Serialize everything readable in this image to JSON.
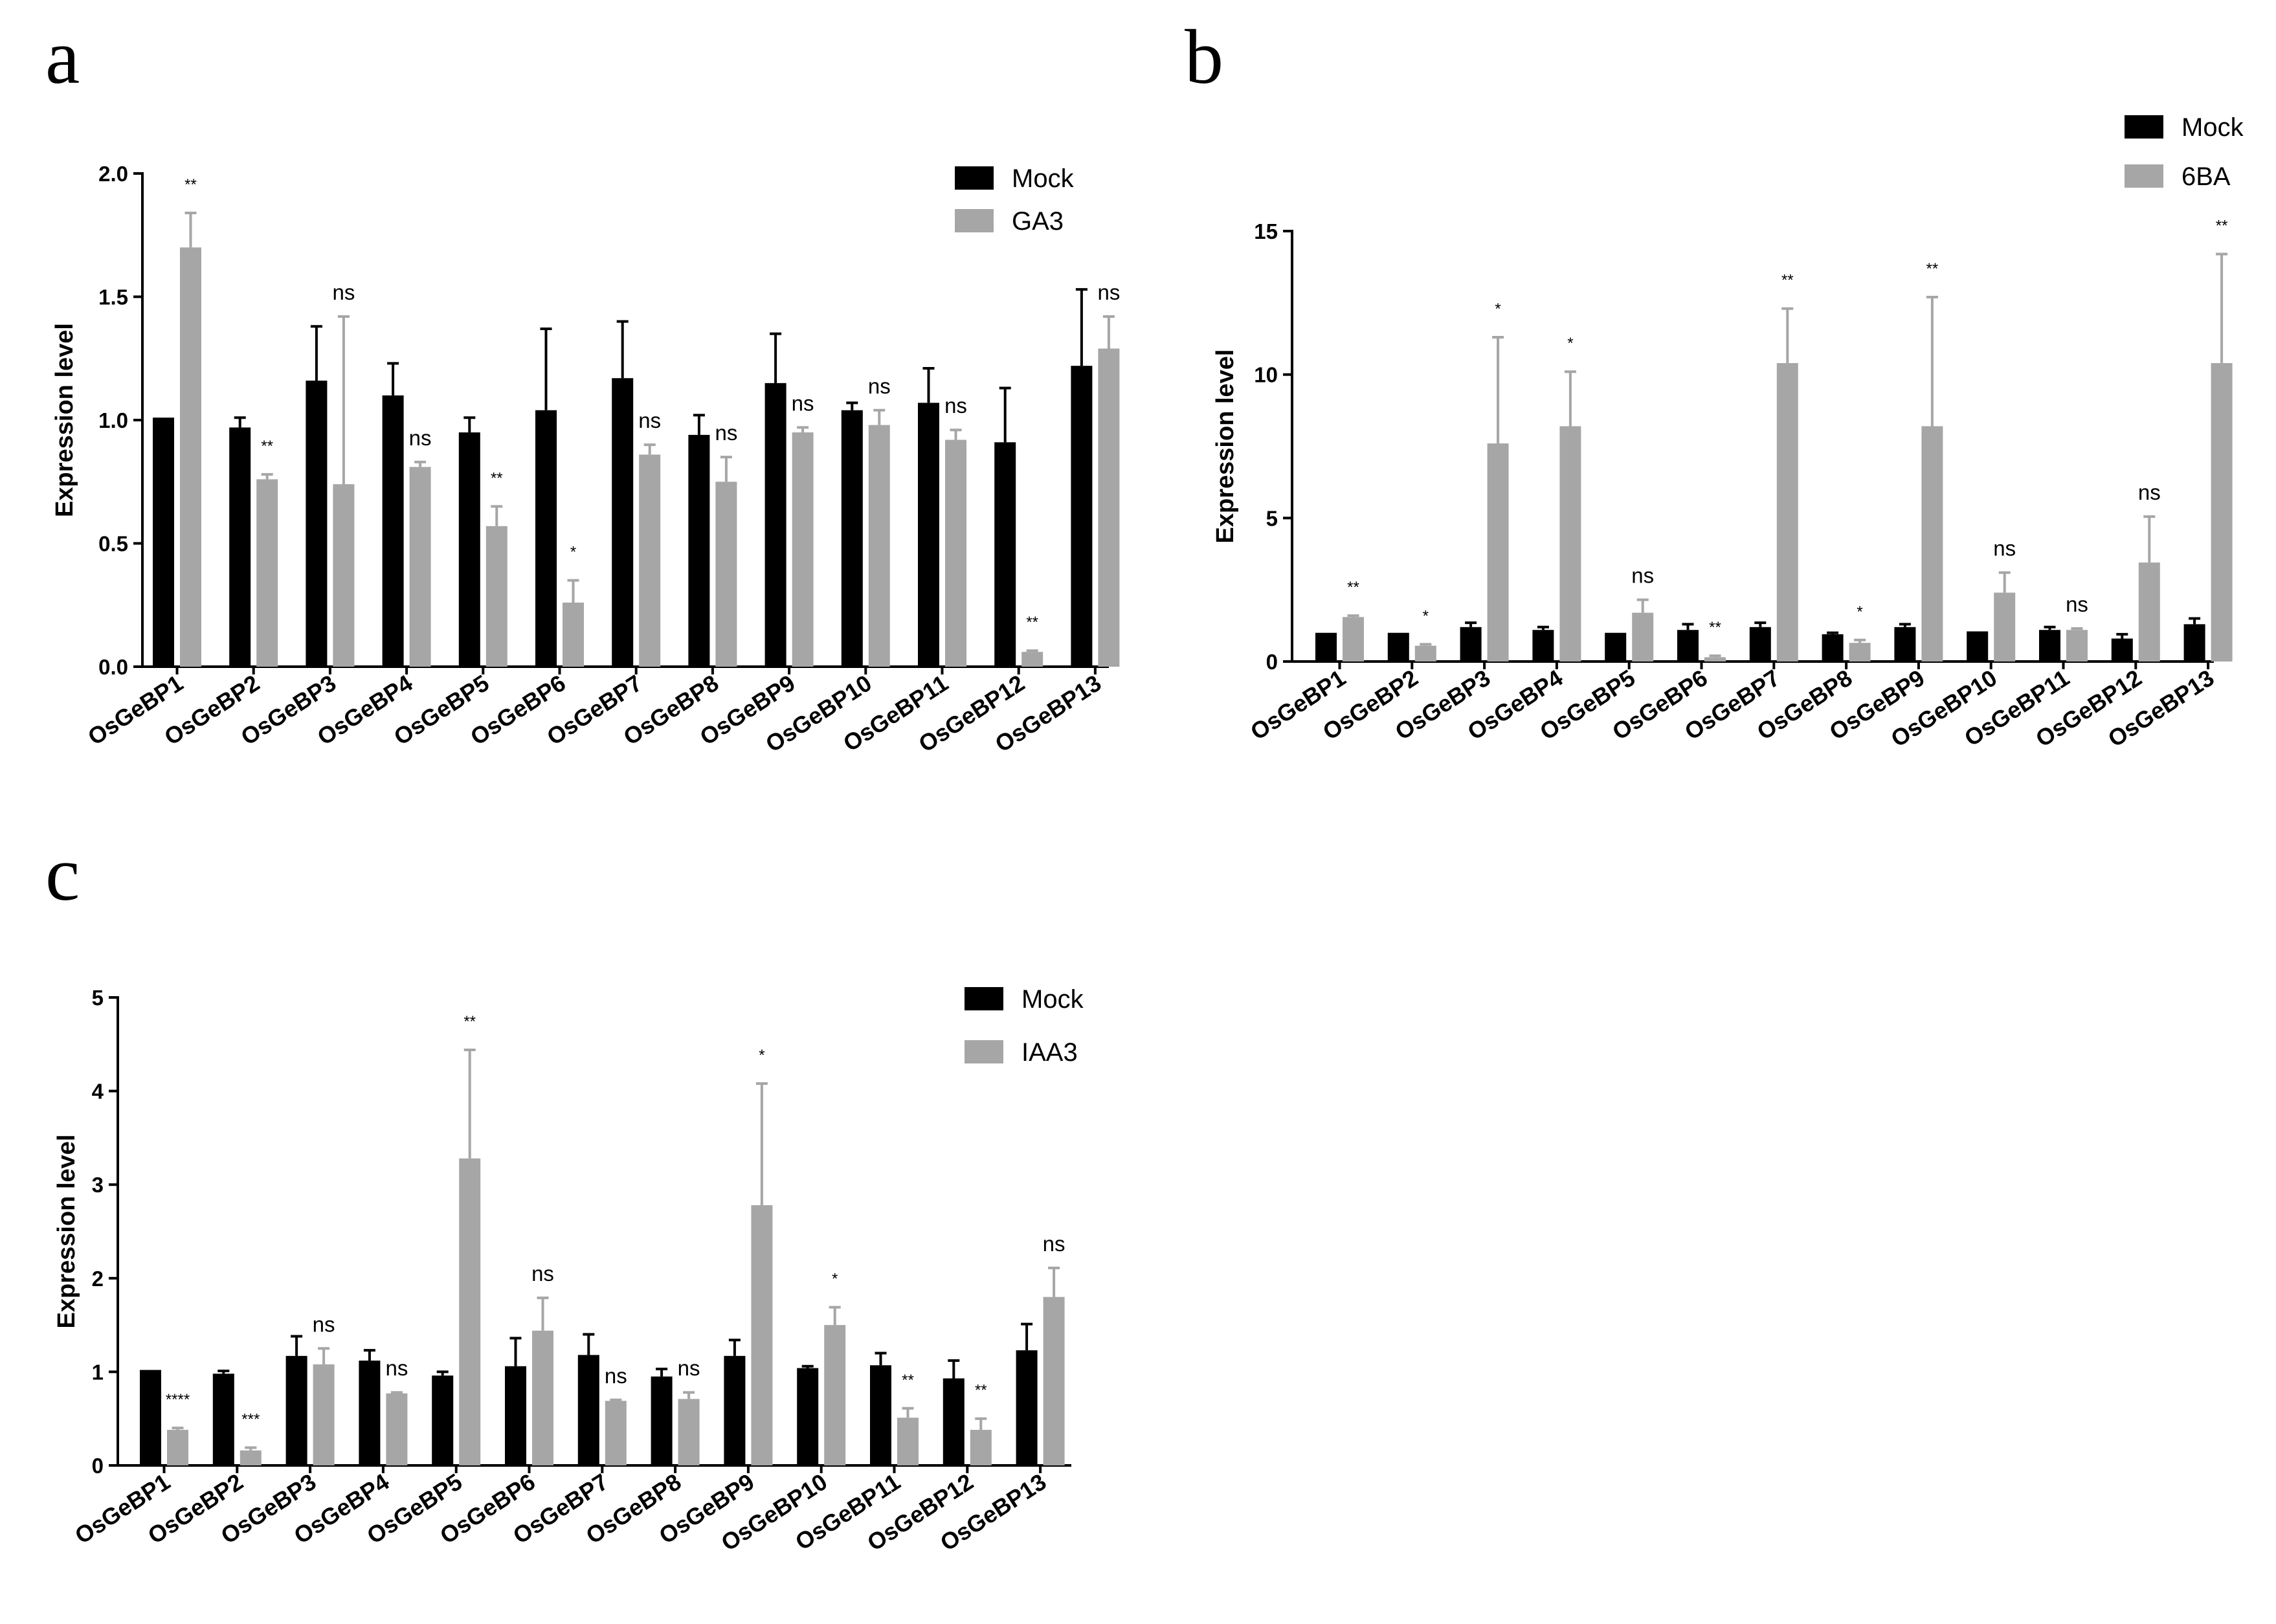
{
  "colors": {
    "mock": "#000000",
    "treatment": "#a6a6a6",
    "axis": "#000000"
  },
  "chart_data": [
    {
      "type": "bar",
      "panel_label": "a",
      "ylabel": "Expression level",
      "ylim": [
        0,
        2.0
      ],
      "yticks": [
        "0.0",
        "0.5",
        "1.0",
        "1.5",
        "2.0"
      ],
      "ytick_values": [
        0,
        0.5,
        1.0,
        1.5,
        2.0
      ],
      "categories": [
        "OsGeBP1",
        "OsGeBP2",
        "OsGeBP3",
        "OsGeBP4",
        "OsGeBP5",
        "OsGeBP6",
        "OsGeBP7",
        "OsGeBP8",
        "OsGeBP9",
        "OsGeBP10",
        "OsGeBP11",
        "OsGeBP12",
        "OsGeBP13"
      ],
      "series": [
        {
          "name": "Mock",
          "values": [
            1.01,
            0.97,
            1.16,
            1.1,
            0.95,
            1.04,
            1.17,
            0.94,
            1.15,
            1.04,
            1.07,
            0.91,
            1.22
          ],
          "errors": [
            0,
            0.04,
            0.22,
            0.13,
            0.06,
            0.33,
            0.23,
            0.08,
            0.2,
            0.03,
            0.14,
            0.22,
            0.31
          ]
        },
        {
          "name": "GA3",
          "values": [
            1.7,
            0.76,
            0.74,
            0.81,
            0.57,
            0.26,
            0.86,
            0.75,
            0.95,
            0.98,
            0.92,
            0.06,
            1.29
          ],
          "errors": [
            0.14,
            0.02,
            0.68,
            0.02,
            0.08,
            0.09,
            0.04,
            0.1,
            0.02,
            0.06,
            0.04,
            0.005,
            0.13
          ]
        }
      ],
      "significance": [
        "**",
        "**",
        "ns",
        "ns",
        "**",
        "*",
        "ns",
        "ns",
        "ns",
        "ns",
        "ns",
        "**",
        "ns"
      ]
    },
    {
      "type": "bar",
      "panel_label": "b",
      "ylabel": "Expression level",
      "ylim": [
        0,
        15
      ],
      "yticks": [
        "0",
        "5",
        "10",
        "15"
      ],
      "ytick_values": [
        0,
        5,
        10,
        15
      ],
      "categories": [
        "OsGeBP1",
        "OsGeBP2",
        "OsGeBP3",
        "OsGeBP4",
        "OsGeBP5",
        "OsGeBP6",
        "OsGeBP7",
        "OsGeBP8",
        "OsGeBP9",
        "OsGeBP10",
        "OsGeBP11",
        "OsGeBP12",
        "OsGeBP13"
      ],
      "series": [
        {
          "name": "Mock",
          "values": [
            1.0,
            1.0,
            1.2,
            1.1,
            1.0,
            1.1,
            1.2,
            0.95,
            1.2,
            1.05,
            1.1,
            0.8,
            1.3
          ],
          "errors": [
            0,
            0,
            0.15,
            0.1,
            0,
            0.2,
            0.15,
            0.05,
            0.1,
            0,
            0.1,
            0.15,
            0.2
          ]
        },
        {
          "name": "6BA",
          "values": [
            1.55,
            0.55,
            7.6,
            8.2,
            1.7,
            0.15,
            10.4,
            0.65,
            8.2,
            2.4,
            1.1,
            3.45,
            10.4
          ],
          "errors": [
            0.05,
            0.05,
            3.7,
            1.9,
            0.45,
            0.05,
            1.9,
            0.1,
            4.5,
            0.7,
            0.05,
            1.6,
            3.8
          ]
        }
      ],
      "significance": [
        "**",
        "*",
        "*",
        "*",
        "ns",
        "**",
        "**",
        "*",
        "**",
        "ns",
        "ns",
        "ns",
        "**"
      ]
    },
    {
      "type": "bar",
      "panel_label": "c",
      "ylabel": "Expression level",
      "ylim": [
        0,
        5
      ],
      "yticks": [
        "0",
        "1",
        "2",
        "3",
        "4",
        "5"
      ],
      "ytick_values": [
        0,
        1,
        2,
        3,
        4,
        5
      ],
      "categories": [
        "OsGeBP1",
        "OsGeBP2",
        "OsGeBP3",
        "OsGeBP4",
        "OsGeBP5",
        "OsGeBP6",
        "OsGeBP7",
        "OsGeBP8",
        "OsGeBP9",
        "OsGeBP10",
        "OsGeBP11",
        "OsGeBP12",
        "OsGeBP13"
      ],
      "series": [
        {
          "name": "Mock",
          "values": [
            1.02,
            0.98,
            1.17,
            1.12,
            0.96,
            1.06,
            1.18,
            0.95,
            1.17,
            1.04,
            1.07,
            0.93,
            1.23
          ],
          "errors": [
            0,
            0.03,
            0.21,
            0.11,
            0.04,
            0.3,
            0.22,
            0.08,
            0.17,
            0.02,
            0.13,
            0.19,
            0.28
          ]
        },
        {
          "name": "IAA3",
          "values": [
            0.38,
            0.16,
            1.08,
            0.77,
            3.28,
            1.44,
            0.69,
            0.71,
            2.78,
            1.5,
            0.51,
            0.38,
            1.8
          ],
          "errors": [
            0.02,
            0.03,
            0.17,
            0.01,
            1.16,
            0.35,
            0.01,
            0.07,
            1.3,
            0.19,
            0.1,
            0.12,
            0.31
          ]
        }
      ],
      "significance": [
        "****",
        "***",
        "ns",
        "ns",
        "**",
        "ns",
        "ns",
        "ns",
        "*",
        "*",
        "**",
        "**",
        "ns"
      ]
    }
  ]
}
